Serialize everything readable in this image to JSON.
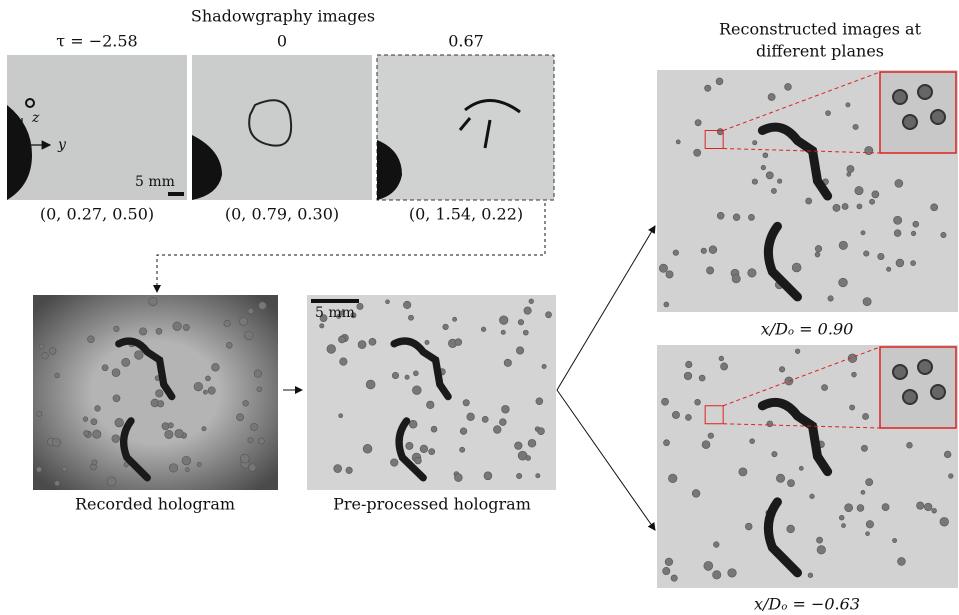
{
  "shadowgraphy": {
    "title": "Shadowgraphy images",
    "panels": [
      {
        "tau": "τ = −2.58",
        "position": "(0, 0.27, 0.50)"
      },
      {
        "tau": "0",
        "position": "(0, 0.79, 0.30)"
      },
      {
        "tau": "0.67",
        "position": "(0, 1.54, 0.22)"
      }
    ],
    "axis_z": "z",
    "axis_y": "y",
    "scale": "5 mm"
  },
  "holograms": {
    "recorded": "Recorded hologram",
    "preprocessed": "Pre-processed hologram",
    "scale": "5 mm"
  },
  "reconstructed": {
    "title_lines": [
      "Reconstructed images at",
      "different planes"
    ],
    "planes": [
      "x/Dₒ = 0.90",
      "x/Dₒ = −0.63"
    ]
  }
}
